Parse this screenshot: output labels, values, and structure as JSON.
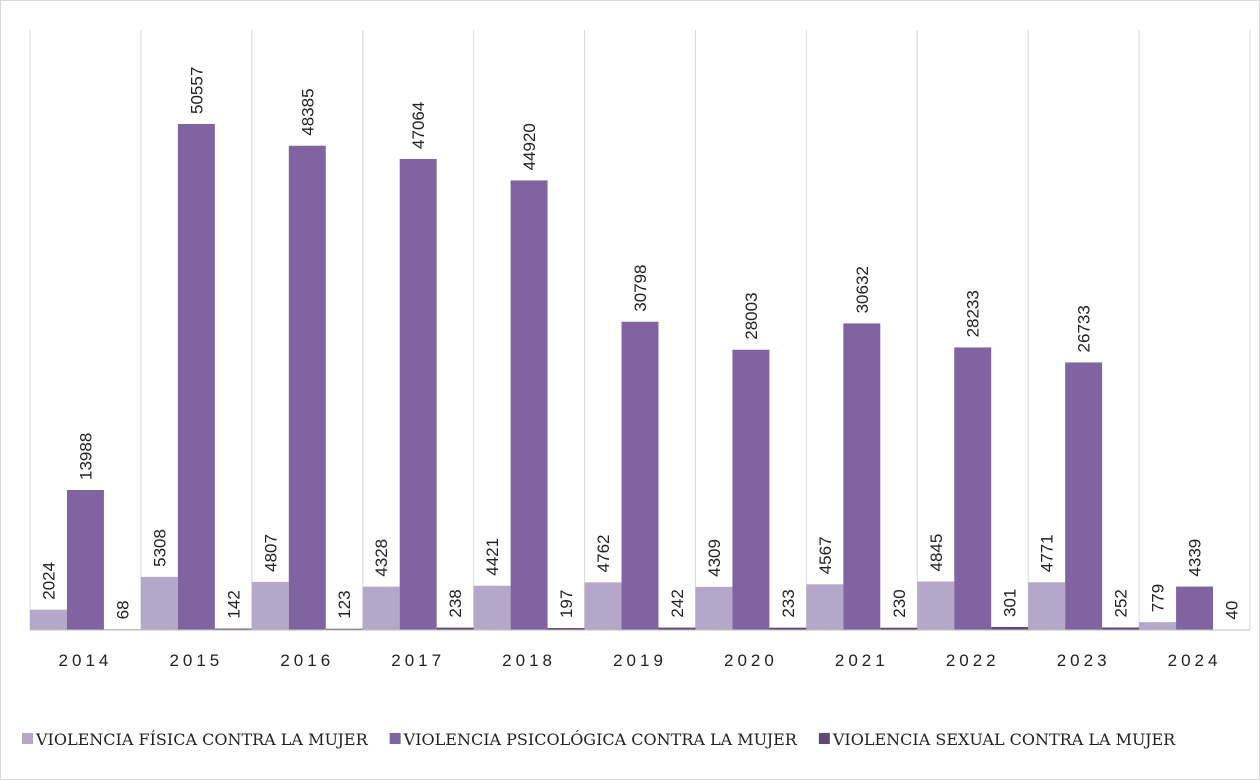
{
  "chart_data": {
    "type": "bar",
    "categories": [
      "2014",
      "2015",
      "2016",
      "2017",
      "2018",
      "2019",
      "2020",
      "2021",
      "2022",
      "2023",
      "2024"
    ],
    "series": [
      {
        "name": "VIOLENCIA FÍSICA CONTRA LA MUJER",
        "color": "#b4a7c9",
        "values": [
          2024,
          5308,
          4807,
          4328,
          4421,
          4762,
          4309,
          4567,
          4845,
          4771,
          779
        ]
      },
      {
        "name": "VIOLENCIA PSICOLÓGICA CONTRA LA MUJER",
        "color": "#8064a2",
        "values": [
          13988,
          50557,
          48385,
          47064,
          44920,
          30798,
          28003,
          30632,
          28233,
          26733,
          4339
        ]
      },
      {
        "name": "VIOLENCIA SEXUAL CONTRA LA MUJER",
        "color": "#60497a",
        "values": [
          68,
          142,
          123,
          238,
          197,
          242,
          233,
          230,
          301,
          252,
          40
        ]
      }
    ],
    "legend": "bottom"
  }
}
